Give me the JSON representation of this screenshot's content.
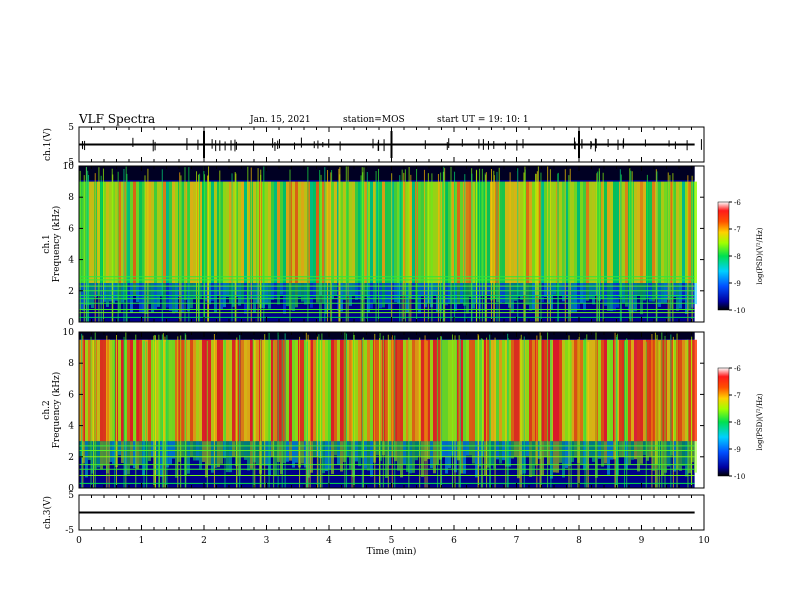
{
  "header": {
    "title": "VLF Spectra",
    "date": "Jan. 15, 2021",
    "station": "station=MOS",
    "start_ut": "start  UT  =   19: 10: 1"
  },
  "chart_data": [
    {
      "type": "line",
      "panel": "ch1-waveform",
      "ylabel": "ch.1(V)",
      "yticks": [
        "5",
        "-5"
      ],
      "ylim": [
        -5,
        5
      ],
      "x": [
        0,
        9.85
      ],
      "values": [
        0,
        0
      ],
      "spikes_min": [
        2.0,
        5.0,
        8.0
      ]
    },
    {
      "type": "heatmap",
      "panel": "ch1-spectrogram",
      "ylabel": "ch.1 Frequency (kHz)",
      "yticks": [
        "0",
        "2",
        "4",
        "6",
        "8",
        "10"
      ],
      "ylim": [
        0,
        10
      ],
      "xlim": [
        0,
        9.85
      ],
      "colorbar": {
        "label": "log(PSD)(V²/Hz)",
        "ticks": [
          "-6",
          "-7",
          "-8",
          "-9",
          "-10"
        ],
        "range": [
          -10,
          -6
        ]
      },
      "horizontal_lines_khz": [
        0.3,
        0.6,
        0.8,
        1.2,
        1.5,
        1.7,
        2.0,
        2.3,
        2.7,
        2.9
      ],
      "band_khz": [
        2.5,
        9.0
      ],
      "band_level": -7.5
    },
    {
      "type": "heatmap",
      "panel": "ch2-spectrogram",
      "ylabel": "ch.2 Frequency (kHz)",
      "yticks": [
        "0",
        "2",
        "4",
        "6",
        "8",
        "10"
      ],
      "ylim": [
        0,
        10
      ],
      "xlim": [
        0,
        9.85
      ],
      "colorbar": {
        "label": "log(PSD)(V²/Hz)",
        "ticks": [
          "-6",
          "-7",
          "-8",
          "-9",
          "-10"
        ],
        "range": [
          -10,
          -6
        ]
      },
      "horizontal_lines_khz": [
        0.3,
        0.8,
        1.2,
        1.5,
        2.0,
        2.4,
        2.7
      ],
      "band_khz": [
        3.0,
        9.5
      ],
      "band_level": -7.0
    },
    {
      "type": "line",
      "panel": "ch3-waveform",
      "ylabel": "ch.3(V)",
      "yticks": [
        "5",
        "-5"
      ],
      "ylim": [
        -5,
        5
      ],
      "x": [
        0,
        9.85
      ],
      "values": [
        0,
        0
      ]
    }
  ],
  "xaxis": {
    "label": "Time (min)",
    "ticks": [
      "0",
      "1",
      "2",
      "3",
      "4",
      "5",
      "6",
      "7",
      "8",
      "9",
      "10"
    ],
    "xlim": [
      0,
      10
    ]
  },
  "colors": {
    "background": "#000080",
    "axis": "#000000"
  }
}
